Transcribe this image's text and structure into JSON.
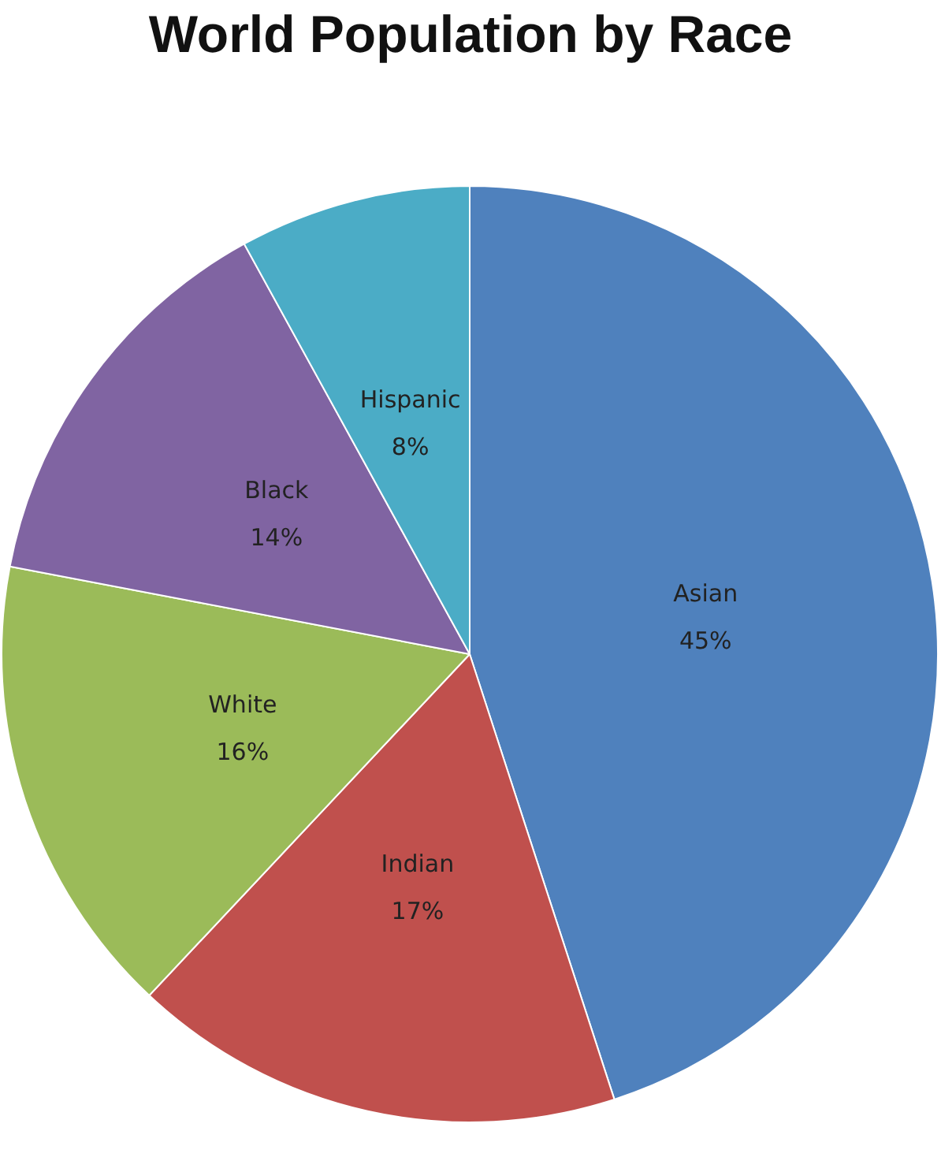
{
  "chart_data": {
    "type": "pie",
    "title": "World Population by Race",
    "categories": [
      "Asian",
      "Indian",
      "White",
      "Black",
      "Hispanic"
    ],
    "values": [
      45,
      17,
      16,
      14,
      8
    ],
    "value_labels": [
      "45%",
      "17%",
      "16%",
      "14%",
      "8%"
    ],
    "colors": [
      "#4f81bd",
      "#c0504d",
      "#9bbb59",
      "#8064a2",
      "#4bacc6"
    ],
    "legend": false
  }
}
